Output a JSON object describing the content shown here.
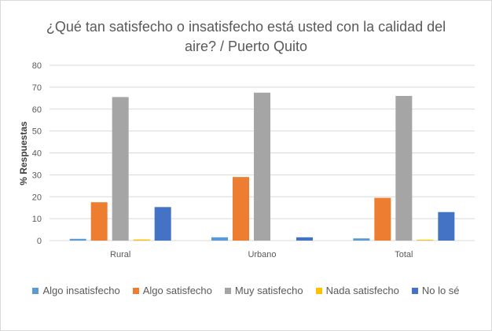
{
  "chart_data": {
    "type": "bar",
    "title": "¿Qué tan satisfecho o insatisfecho está usted con la calidad del aire? / Puerto Quito",
    "xlabel": "",
    "ylabel": "% Respuestas",
    "ylim": [
      0,
      80
    ],
    "yticks": [
      "0",
      "10",
      "20",
      "30",
      "40",
      "50",
      "60",
      "70",
      "80"
    ],
    "grid": true,
    "legend_position": "bottom",
    "categories": [
      "Rural",
      "Urbano",
      "Total"
    ],
    "series": [
      {
        "name": "Algo insatisfecho",
        "color": "#5b9bd5",
        "values": [
          0.8,
          1.5,
          1.0
        ]
      },
      {
        "name": "Algo satisfecho",
        "color": "#ed7d31",
        "values": [
          17.5,
          29.0,
          19.5
        ]
      },
      {
        "name": "Muy satisfecho",
        "color": "#a5a5a5",
        "values": [
          65.5,
          67.5,
          66.0
        ]
      },
      {
        "name": "Nada satisfecho",
        "color": "#ffc000",
        "values": [
          0.5,
          0.0,
          0.4
        ]
      },
      {
        "name": "No lo sé",
        "color": "#4472c4",
        "values": [
          15.3,
          1.5,
          13.0
        ]
      }
    ]
  }
}
